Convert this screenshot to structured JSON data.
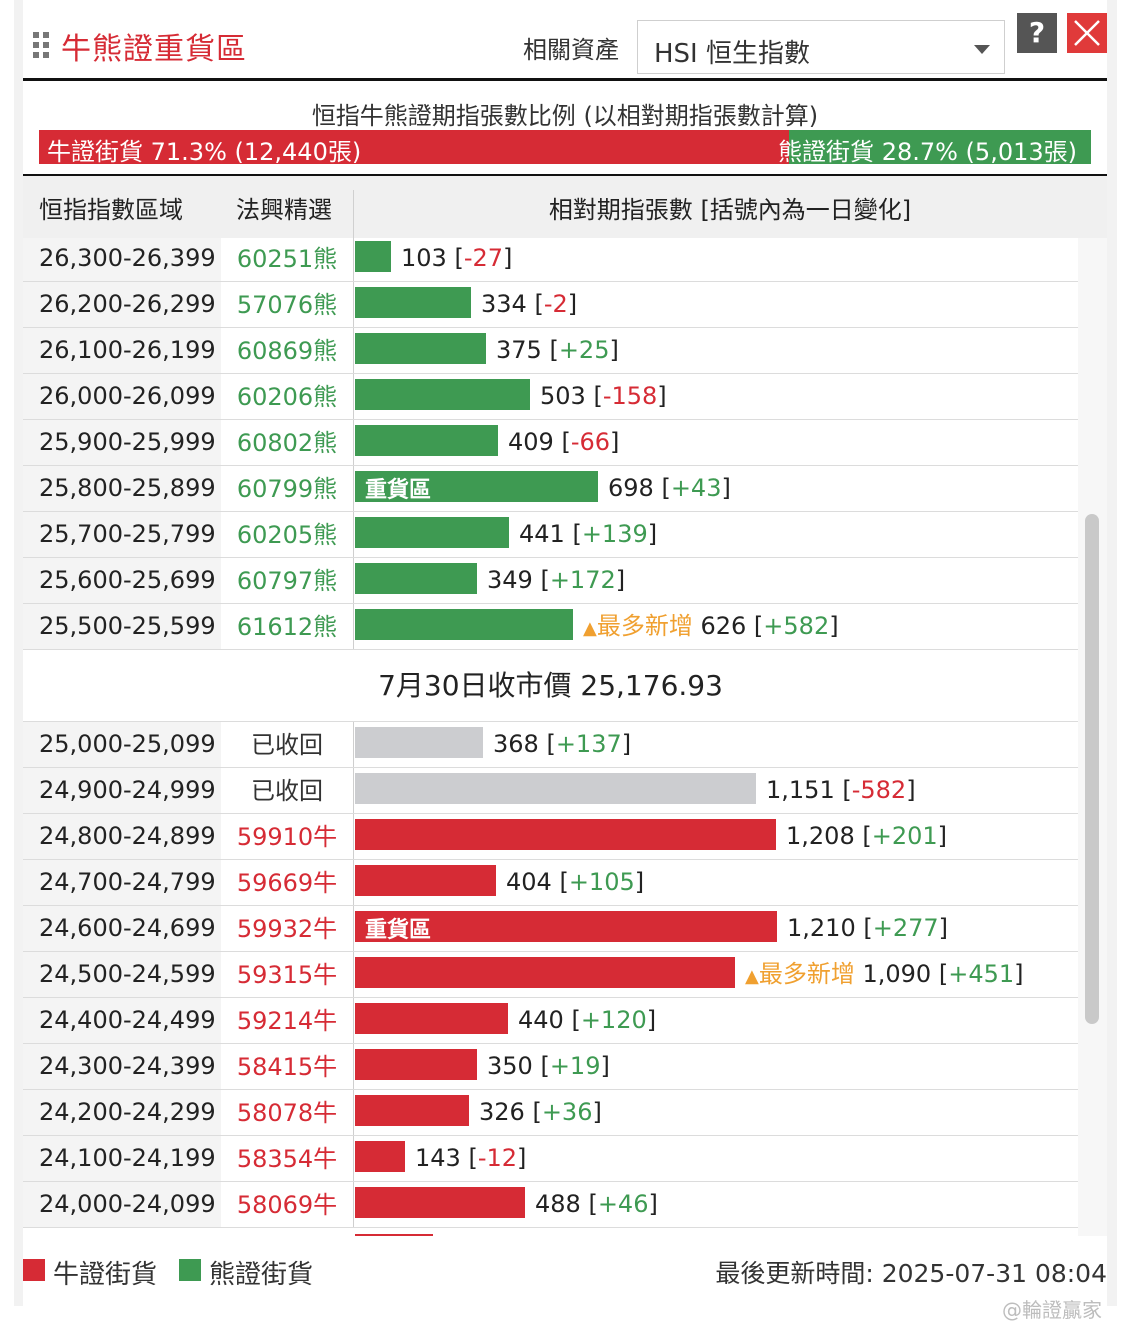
{
  "header": {
    "title": "牛熊證重貨區",
    "asset_label": "相關資產",
    "asset_selected": "HSI 恒生指數",
    "help_label": "?"
  },
  "ratio": {
    "title": "恒指牛熊證期指張數比例 (以相對期指張數計算)",
    "bull_label": "牛證街貨 71.3% (12,440張)",
    "bear_label": "熊證街貨 28.7% (5,013張)",
    "bull_pct": 71.3
  },
  "columns": {
    "range": "恒指指數區域",
    "pick": "法興精選",
    "contracts": "相對期指張數 [括號內為一日變化]"
  },
  "max_value": 1210,
  "bear_rows": [
    {
      "range": "26,300-26,399",
      "code": "60251熊",
      "value": 103,
      "value_text": "103",
      "change": "-27",
      "tag": ""
    },
    {
      "range": "26,200-26,299",
      "code": "57076熊",
      "value": 334,
      "value_text": "334",
      "change": "-2",
      "tag": ""
    },
    {
      "range": "26,100-26,199",
      "code": "60869熊",
      "value": 375,
      "value_text": "375",
      "change": "+25",
      "tag": ""
    },
    {
      "range": "26,000-26,099",
      "code": "60206熊",
      "value": 503,
      "value_text": "503",
      "change": "-158",
      "tag": ""
    },
    {
      "range": "25,900-25,999",
      "code": "60802熊",
      "value": 409,
      "value_text": "409",
      "change": "-66",
      "tag": ""
    },
    {
      "range": "25,800-25,899",
      "code": "60799熊",
      "value": 698,
      "value_text": "698",
      "change": "+43",
      "tag": "",
      "bar_label": "重貨區"
    },
    {
      "range": "25,700-25,799",
      "code": "60205熊",
      "value": 441,
      "value_text": "441",
      "change": "+139",
      "tag": ""
    },
    {
      "range": "25,600-25,699",
      "code": "60797熊",
      "value": 349,
      "value_text": "349",
      "change": "+172",
      "tag": ""
    },
    {
      "range": "25,500-25,599",
      "code": "61612熊",
      "value": 626,
      "value_text": "626",
      "change": "+582",
      "tag": "最多新增"
    }
  ],
  "close_price": "7月30日收市價 25,176.93",
  "bull_rows": [
    {
      "range": "25,000-25,099",
      "code": "已收回",
      "kind": "recalled",
      "value": 368,
      "value_text": "368",
      "change": "+137",
      "tag": ""
    },
    {
      "range": "24,900-24,999",
      "code": "已收回",
      "kind": "recalled",
      "value": 1151,
      "value_text": "1,151",
      "change": "-582",
      "tag": ""
    },
    {
      "range": "24,800-24,899",
      "code": "59910牛",
      "kind": "bull",
      "value": 1208,
      "value_text": "1,208",
      "change": "+201",
      "tag": ""
    },
    {
      "range": "24,700-24,799",
      "code": "59669牛",
      "kind": "bull",
      "value": 404,
      "value_text": "404",
      "change": "+105",
      "tag": ""
    },
    {
      "range": "24,600-24,699",
      "code": "59932牛",
      "kind": "bull",
      "value": 1210,
      "value_text": "1,210",
      "change": "+277",
      "tag": "",
      "bar_label": "重貨區"
    },
    {
      "range": "24,500-24,599",
      "code": "59315牛",
      "kind": "bull",
      "value": 1090,
      "value_text": "1,090",
      "change": "+451",
      "tag": "最多新增"
    },
    {
      "range": "24,400-24,499",
      "code": "59214牛",
      "kind": "bull",
      "value": 440,
      "value_text": "440",
      "change": "+120",
      "tag": ""
    },
    {
      "range": "24,300-24,399",
      "code": "58415牛",
      "kind": "bull",
      "value": 350,
      "value_text": "350",
      "change": "+19",
      "tag": ""
    },
    {
      "range": "24,200-24,299",
      "code": "58078牛",
      "kind": "bull",
      "value": 326,
      "value_text": "326",
      "change": "+36",
      "tag": ""
    },
    {
      "range": "24,100-24,199",
      "code": "58354牛",
      "kind": "bull",
      "value": 143,
      "value_text": "143",
      "change": "-12",
      "tag": ""
    },
    {
      "range": "24,000-24,099",
      "code": "58069牛",
      "kind": "bull",
      "value": 488,
      "value_text": "488",
      "change": "+46",
      "tag": ""
    }
  ],
  "legend": {
    "bull": "牛證街貨",
    "bear": "熊證街貨"
  },
  "updated": "最後更新時間: 2025-07-31 08:04",
  "watermark": "@輪證贏家",
  "colors": {
    "bull": "#d62b35",
    "bear": "#3e9a52",
    "recalled": "#cccdd0",
    "new_tag": "#f0a030"
  }
}
